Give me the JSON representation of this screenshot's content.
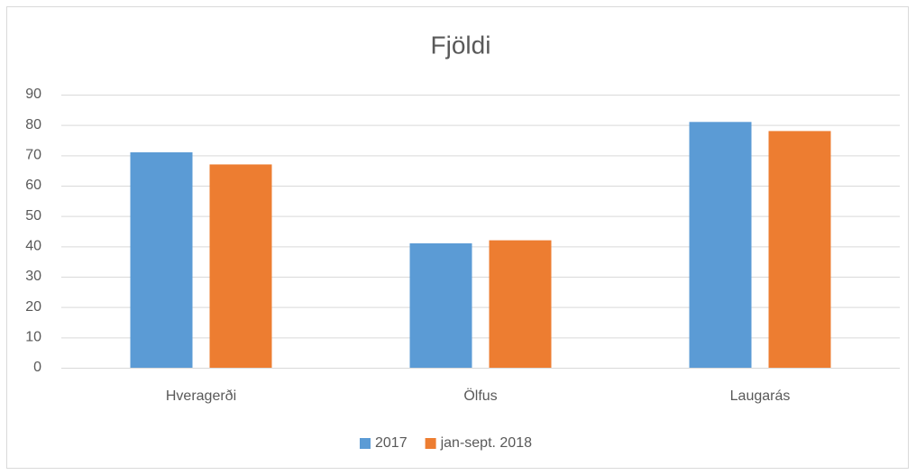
{
  "chart_data": {
    "type": "bar",
    "title": "Fjöldi",
    "categories": [
      "Hveragerði",
      "Ölfus",
      "Laugarás"
    ],
    "series": [
      {
        "name": "2017",
        "color": "#5b9bd5",
        "values": [
          71,
          41,
          81
        ]
      },
      {
        "name": "jan-sept. 2018",
        "color": "#ed7d31",
        "values": [
          67,
          42,
          78
        ]
      }
    ],
    "ylim": [
      0,
      90
    ],
    "yticks": [
      0,
      10,
      20,
      30,
      40,
      50,
      60,
      70,
      80,
      90
    ],
    "grid": true,
    "legend": "bottom"
  }
}
